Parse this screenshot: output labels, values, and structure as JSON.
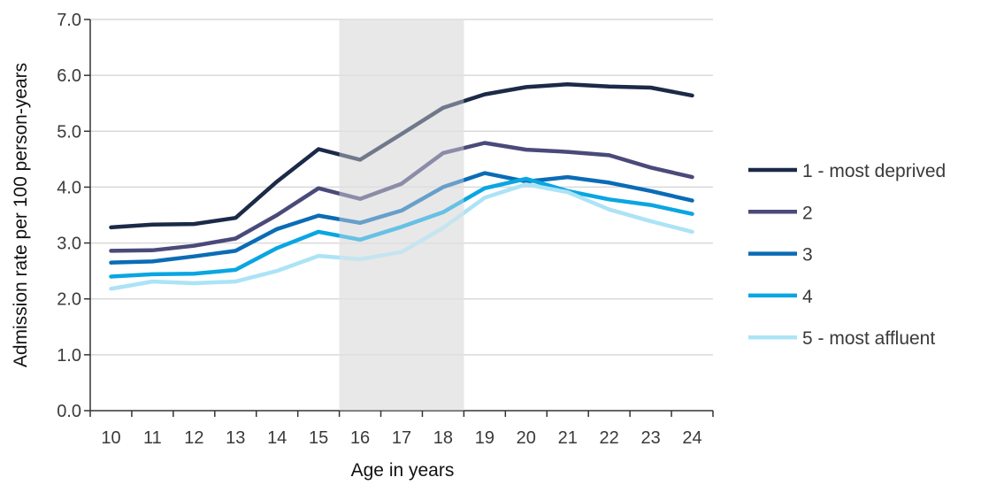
{
  "chart_data": {
    "type": "line",
    "title": "",
    "xlabel": "Age in years",
    "ylabel": "Admission rate per 100 person-years",
    "x": [
      10,
      11,
      12,
      13,
      14,
      15,
      16,
      17,
      18,
      19,
      20,
      21,
      22,
      23,
      24
    ],
    "x_tick_labels": [
      "10",
      "11",
      "12",
      "13",
      "14",
      "15",
      "16",
      "17",
      "18",
      "19",
      "20",
      "21",
      "22",
      "23",
      "24"
    ],
    "y_tick_labels": [
      "0.0",
      "1.0",
      "2.0",
      "3.0",
      "4.0",
      "5.0",
      "6.0",
      "7.0"
    ],
    "ylim": [
      0,
      7
    ],
    "grid": "horizontal",
    "legend_position": "right",
    "shaded_region": {
      "x_start": 15.5,
      "x_end": 18.5,
      "color": "#e8e8e8"
    },
    "series": [
      {
        "name": "1 - most deprived",
        "color": "#1b2a47",
        "values": [
          3.28,
          3.33,
          3.34,
          3.45,
          4.1,
          4.68,
          4.49,
          4.95,
          5.42,
          5.66,
          5.79,
          5.84,
          5.8,
          5.78,
          5.64
        ]
      },
      {
        "name": "2",
        "color": "#4a4a7a",
        "values": [
          2.86,
          2.87,
          2.95,
          3.08,
          3.5,
          3.98,
          3.79,
          4.06,
          4.61,
          4.79,
          4.67,
          4.63,
          4.57,
          4.35,
          4.18
        ]
      },
      {
        "name": "3",
        "color": "#0b6cb5",
        "values": [
          2.65,
          2.67,
          2.76,
          2.86,
          3.25,
          3.49,
          3.36,
          3.58,
          4.0,
          4.25,
          4.1,
          4.18,
          4.08,
          3.93,
          3.76
        ]
      },
      {
        "name": "4",
        "color": "#0aa6e2",
        "values": [
          2.4,
          2.44,
          2.45,
          2.52,
          2.91,
          3.2,
          3.06,
          3.29,
          3.55,
          3.98,
          4.15,
          3.93,
          3.78,
          3.68,
          3.52
        ]
      },
      {
        "name": "5 - most affluent",
        "color": "#ace3f6",
        "values": [
          2.18,
          2.31,
          2.28,
          2.31,
          2.5,
          2.77,
          2.71,
          2.84,
          3.27,
          3.81,
          4.05,
          3.91,
          3.6,
          3.39,
          3.2
        ]
      }
    ]
  }
}
